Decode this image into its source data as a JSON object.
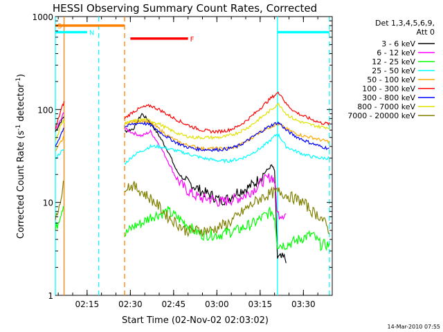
{
  "chart_data": {
    "type": "line",
    "title": "HESSI Observing Summary Count Rates, Corrected",
    "xlabel": "Start Time (02-Nov-02 02:03:02)",
    "ylabel": "Corrected Count Rate (s⁻¹ detector⁻¹)",
    "ylabel_main": "Corrected Count Rate (s",
    "ylabel_sup1": "-1",
    "ylabel_mid": " detector",
    "ylabel_sup2": "-1",
    "ylabel_end": ")",
    "timestamp": "14-Mar-2010 07:55",
    "y_scale": "log",
    "ylim": [
      1,
      1000
    ],
    "xlim": [
      "02:04",
      "03:40"
    ],
    "yticks": [
      {
        "value": 1,
        "label": "1"
      },
      {
        "value": 10,
        "label": "10"
      },
      {
        "value": 100,
        "label": "100"
      },
      {
        "value": 1000,
        "label": "1000"
      }
    ],
    "xticks": [
      {
        "value": "02:15",
        "label": "02:15"
      },
      {
        "value": "02:30",
        "label": "02:30"
      },
      {
        "value": "02:45",
        "label": "02:45"
      },
      {
        "value": "03:00",
        "label": "03:00"
      },
      {
        "value": "03:15",
        "label": "03:15"
      },
      {
        "value": "03:30",
        "label": "03:30"
      }
    ],
    "legend": {
      "position": "right",
      "header": [
        "Det 1,3,4,5,6,9,",
        "Att 0"
      ]
    },
    "series": [
      {
        "name": "3 - 6 keV",
        "color": "#000000",
        "x": [
          "02:04",
          "02:06",
          "02:07",
          "02:28",
          "02:31",
          "02:34",
          "02:37",
          "02:40",
          "02:43",
          "02:46",
          "02:49",
          "02:52",
          "02:55",
          "02:58",
          "03:01",
          "03:04",
          "03:07",
          "03:10",
          "03:13",
          "03:16",
          "03:19",
          "03:20",
          "03:21",
          "03:24"
        ],
        "y": [
          58,
          75,
          85,
          58,
          62,
          90,
          72,
          52,
          36,
          22,
          17,
          15,
          13,
          12,
          10.5,
          11,
          13,
          14,
          16,
          20,
          25,
          22,
          2.5,
          2.5
        ]
      },
      {
        "name": "6 - 12 keV",
        "color": "#ff00ff",
        "x": [
          "02:04",
          "02:06",
          "02:07",
          "02:28",
          "02:31",
          "02:34",
          "02:37",
          "02:40",
          "02:43",
          "02:46",
          "02:49",
          "02:52",
          "02:55",
          "02:58",
          "03:01",
          "03:04",
          "03:07",
          "03:10",
          "03:13",
          "03:16",
          "03:19",
          "03:20",
          "03:21",
          "03:24"
        ],
        "y": [
          60,
          78,
          95,
          62,
          56,
          52,
          58,
          42,
          28,
          18,
          14,
          12,
          11,
          11,
          10,
          10.5,
          11,
          12,
          14,
          17,
          19,
          17,
          7.5,
          7.5
        ]
      },
      {
        "name": "12 - 25 keV",
        "color": "#00ff00",
        "x": [
          "02:04",
          "02:06",
          "02:07",
          "02:28",
          "02:31",
          "02:34",
          "02:37",
          "02:40",
          "02:43",
          "02:46",
          "02:49",
          "02:52",
          "02:55",
          "02:58",
          "03:01",
          "03:04",
          "03:07",
          "03:10",
          "03:13",
          "03:16",
          "03:19",
          "03:20",
          "03:21",
          "03:24",
          "03:27",
          "03:30",
          "03:33",
          "03:36",
          "03:39"
        ],
        "y": [
          5,
          8,
          10,
          4.5,
          5.5,
          6,
          7,
          7.5,
          8,
          7,
          6,
          5,
          4.5,
          4.5,
          4.5,
          4.8,
          5,
          5.5,
          6,
          7,
          8,
          7,
          3.5,
          3.5,
          3.8,
          4.2,
          4.5,
          3.5,
          3.5
        ]
      },
      {
        "name": "25 - 50 keV",
        "color": "#00ffff",
        "x": [
          "02:04",
          "02:06",
          "02:07",
          "02:28",
          "02:31",
          "02:34",
          "02:37",
          "02:40",
          "02:43",
          "02:46",
          "02:49",
          "02:52",
          "02:55",
          "02:58",
          "03:01",
          "03:04",
          "03:07",
          "03:10",
          "03:13",
          "03:16",
          "03:19",
          "03:21",
          "03:22",
          "03:24",
          "03:27",
          "03:30",
          "03:33",
          "03:36",
          "03:39"
        ],
        "y": [
          30,
          35,
          37,
          26,
          32,
          36,
          40,
          40,
          38,
          36,
          34,
          32,
          30,
          29,
          28,
          28,
          29,
          31,
          35,
          40,
          48,
          55,
          50,
          40,
          36,
          33,
          31,
          30,
          30
        ]
      },
      {
        "name": "50 - 100 keV",
        "color": "#ffaa00",
        "x": [
          "02:04",
          "02:06",
          "02:07",
          "02:28",
          "02:31",
          "02:34",
          "02:37",
          "02:40",
          "02:43",
          "02:46",
          "02:49",
          "02:52",
          "02:55",
          "02:58",
          "03:01",
          "03:04",
          "03:07",
          "03:10",
          "03:13",
          "03:16",
          "03:19",
          "03:21",
          "03:22",
          "03:24",
          "03:27",
          "03:30",
          "03:33",
          "03:36",
          "03:39"
        ],
        "y": [
          35,
          45,
          50,
          70,
          74,
          76,
          72,
          62,
          52,
          46,
          42,
          40,
          38,
          38,
          38,
          38,
          40,
          45,
          52,
          60,
          66,
          70,
          68,
          62,
          56,
          52,
          50,
          47,
          45
        ]
      },
      {
        "name": "100 - 300 keV",
        "color": "#ff0000",
        "x": [
          "02:04",
          "02:06",
          "02:07",
          "02:28",
          "02:31",
          "02:34",
          "02:37",
          "02:40",
          "02:43",
          "02:46",
          "02:49",
          "02:52",
          "02:55",
          "02:58",
          "03:01",
          "03:04",
          "03:07",
          "03:10",
          "03:13",
          "03:16",
          "03:19",
          "03:21",
          "03:22",
          "03:24",
          "03:27",
          "03:30",
          "03:33",
          "03:36",
          "03:39"
        ],
        "y": [
          62,
          100,
          120,
          80,
          95,
          105,
          110,
          100,
          88,
          78,
          70,
          64,
          60,
          58,
          58,
          60,
          65,
          75,
          90,
          110,
          135,
          150,
          148,
          115,
          95,
          85,
          78,
          72,
          70
        ]
      },
      {
        "name": "300 - 800 keV",
        "color": "#0000ff",
        "x": [
          "02:04",
          "02:06",
          "02:07",
          "02:28",
          "02:31",
          "02:34",
          "02:37",
          "02:40",
          "02:43",
          "02:46",
          "02:49",
          "02:52",
          "02:55",
          "02:58",
          "03:01",
          "03:04",
          "03:07",
          "03:10",
          "03:13",
          "03:16",
          "03:19",
          "03:21",
          "03:22",
          "03:24",
          "03:27",
          "03:30",
          "03:33",
          "03:36",
          "03:39"
        ],
        "y": [
          40,
          55,
          65,
          65,
          70,
          72,
          68,
          58,
          50,
          44,
          40,
          38,
          37,
          37,
          37,
          38,
          40,
          45,
          52,
          60,
          68,
          72,
          70,
          60,
          52,
          47,
          43,
          40,
          38
        ]
      },
      {
        "name": "800 - 7000 keV",
        "color": "#e1e100",
        "x": [
          "02:04",
          "02:06",
          "02:07",
          "02:28",
          "02:31",
          "02:34",
          "02:37",
          "02:40",
          "02:43",
          "02:46",
          "02:49",
          "02:52",
          "02:55",
          "02:58",
          "03:01",
          "03:04",
          "03:07",
          "03:10",
          "03:13",
          "03:16",
          "03:19",
          "03:21",
          "03:22",
          "03:24",
          "03:27",
          "03:30",
          "03:33",
          "03:36",
          "03:39"
        ],
        "y": [
          45,
          70,
          75,
          70,
          75,
          78,
          76,
          70,
          62,
          56,
          52,
          50,
          50,
          50,
          50,
          52,
          56,
          62,
          72,
          85,
          100,
          115,
          110,
          90,
          78,
          72,
          68,
          65,
          64
        ]
      },
      {
        "name": "7000 - 20000 keV",
        "color": "#808000",
        "x": [
          "02:04",
          "02:06",
          "02:07",
          "02:28",
          "02:31",
          "02:34",
          "02:37",
          "02:40",
          "02:43",
          "02:46",
          "02:49",
          "02:52",
          "02:55",
          "02:58",
          "03:01",
          "03:04",
          "03:07",
          "03:10",
          "03:13",
          "03:16",
          "03:19",
          "03:21",
          "03:22",
          "03:24",
          "03:27",
          "03:30",
          "03:33",
          "03:36",
          "03:39"
        ],
        "y": [
          6,
          12,
          16,
          15,
          15,
          13,
          11,
          9,
          7,
          6,
          5,
          5,
          5,
          5,
          5.5,
          6,
          7,
          8.5,
          10,
          11.5,
          12.5,
          13,
          13,
          12,
          11,
          10,
          8,
          7,
          5
        ]
      }
    ],
    "attenuator_bars": [
      {
        "label": "S",
        "start": "02:04",
        "end": "02:28",
        "value": 800,
        "color": "#ff8000"
      },
      {
        "label": "N",
        "start": "02:04",
        "end": "02:15",
        "value": 680,
        "color": "#00ffff"
      },
      {
        "label": "F",
        "start": "02:30",
        "end": "02:50",
        "value": 580,
        "color": "#ff0000"
      },
      {
        "label": "",
        "start": "03:21",
        "end": "03:39",
        "value": 680,
        "color": "#00ffff"
      }
    ],
    "vertical_lines": [
      {
        "x": "02:04",
        "color": "#00ffff",
        "style": "solid"
      },
      {
        "x": "02:07",
        "color": "#ff8000",
        "style": "solid"
      },
      {
        "x": "02:19",
        "color": "#00ffff",
        "style": "dashed"
      },
      {
        "x": "02:28",
        "color": "#ff8000",
        "style": "dashed"
      },
      {
        "x": "03:21",
        "color": "#00ffff",
        "style": "solid"
      },
      {
        "x": "03:39",
        "color": "#00ffff",
        "style": "dashed"
      }
    ],
    "data_gaps": [
      [
        "02:07",
        "02:28"
      ]
    ]
  }
}
